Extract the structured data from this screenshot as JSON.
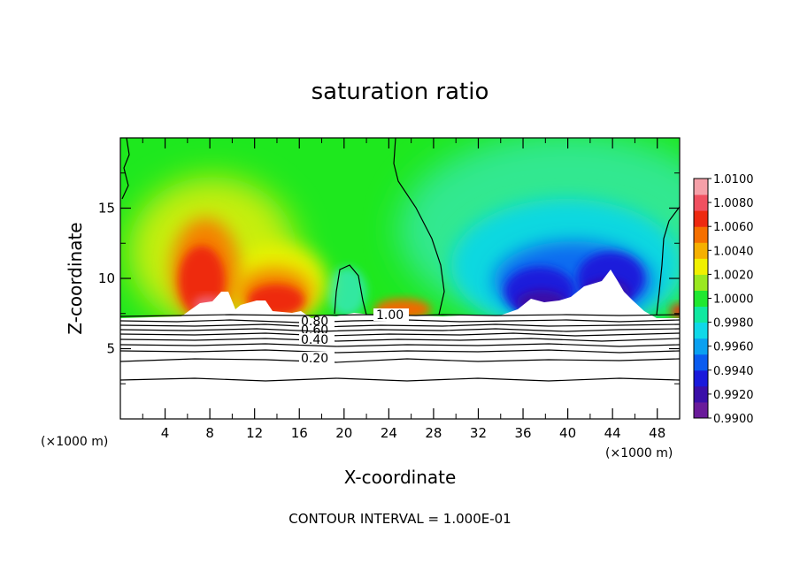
{
  "chart_data": {
    "type": "heatmap",
    "title": "saturation ratio",
    "xlabel": "X-coordinate",
    "ylabel": "Z-coordinate",
    "x_unit": "(×1000 m)",
    "y_unit": "(×1000 m)",
    "xlim": [
      0,
      50
    ],
    "ylim": [
      0,
      20
    ],
    "x_ticks": [
      4,
      8,
      12,
      16,
      20,
      24,
      28,
      32,
      36,
      40,
      44,
      48
    ],
    "y_ticks": [
      5,
      10,
      15
    ],
    "colorbar": {
      "min": 0.99,
      "max": 1.01,
      "labels": [
        "1.0100",
        "1.0080",
        "1.0060",
        "1.0040",
        "1.0020",
        "1.0000",
        "0.9980",
        "0.9960",
        "0.9940",
        "0.9920",
        "0.9900"
      ],
      "colors": [
        "#6a1b9a",
        "#3a0fa8",
        "#1a1adb",
        "#0a5cf0",
        "#0aa0f0",
        "#10d8e8",
        "#10e8a0",
        "#20e830",
        "#9ae820",
        "#f0f000",
        "#f5b000",
        "#f57000",
        "#ee2a10",
        "#f05060",
        "#f5a0a8"
      ]
    },
    "contour_labels": [
      "1.00",
      "0.80",
      "0.60",
      "0.40",
      "0.20"
    ],
    "note": "CONTOUR INTERVAL = 1.000E-01"
  }
}
